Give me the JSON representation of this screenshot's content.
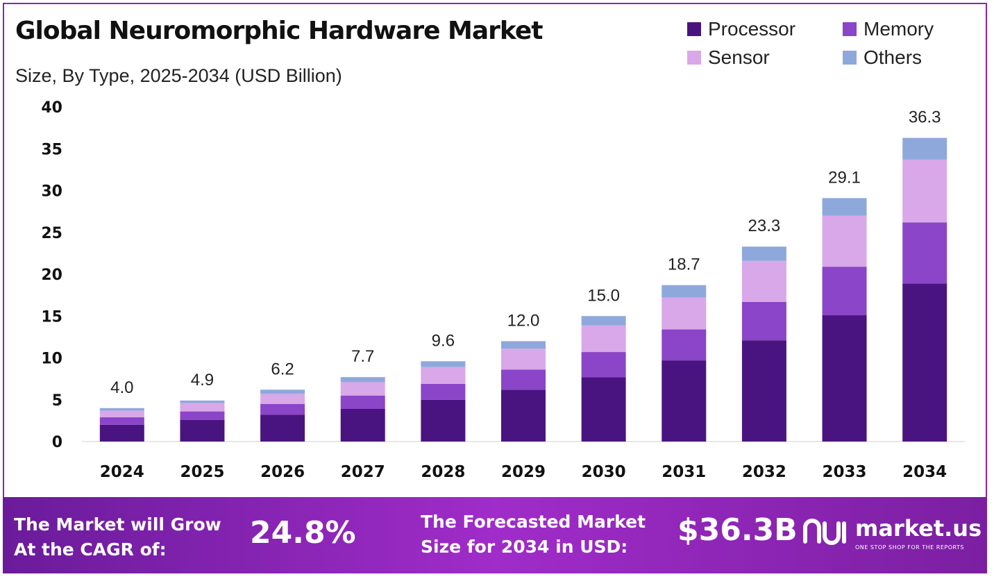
{
  "header": {
    "title": "Global Neuromorphic Hardware Market",
    "subtitle": "Size, By Type, 2025-2034 (USD Billion)"
  },
  "legend": [
    {
      "label": "Processor",
      "color": "#4a1480"
    },
    {
      "label": "Memory",
      "color": "#8b45c8"
    },
    {
      "label": "Sensor",
      "color": "#d9a8e8"
    },
    {
      "label": "Others",
      "color": "#8fa8dc"
    }
  ],
  "chart_data": {
    "type": "bar",
    "stacked": true,
    "categories": [
      "2024",
      "2025",
      "2026",
      "2027",
      "2028",
      "2029",
      "2030",
      "2031",
      "2032",
      "2033",
      "2034"
    ],
    "series": [
      {
        "name": "Processor",
        "color": "#4a1480",
        "values": [
          2.0,
          2.6,
          3.2,
          3.9,
          5.0,
          6.2,
          7.7,
          9.7,
          12.1,
          15.1,
          18.9
        ]
      },
      {
        "name": "Memory",
        "color": "#8b45c8",
        "values": [
          0.9,
          1.0,
          1.3,
          1.6,
          1.9,
          2.4,
          3.0,
          3.7,
          4.6,
          5.8,
          7.3
        ]
      },
      {
        "name": "Sensor",
        "color": "#d9a8e8",
        "values": [
          0.8,
          1.0,
          1.2,
          1.6,
          2.0,
          2.5,
          3.2,
          3.8,
          4.9,
          6.1,
          7.5
        ]
      },
      {
        "name": "Others",
        "color": "#8fa8dc",
        "values": [
          0.3,
          0.3,
          0.5,
          0.6,
          0.7,
          0.9,
          1.1,
          1.5,
          1.7,
          2.1,
          2.6
        ]
      }
    ],
    "totals": [
      "4.0",
      "4.9",
      "6.2",
      "7.7",
      "9.6",
      "12.0",
      "15.0",
      "18.7",
      "23.3",
      "29.1",
      "36.3"
    ],
    "total_values": [
      4.0,
      4.9,
      6.2,
      7.7,
      9.6,
      12.0,
      15.0,
      18.7,
      23.3,
      29.1,
      36.3
    ],
    "yticks": [
      0,
      5,
      10,
      15,
      20,
      25,
      30,
      35,
      40
    ],
    "ylim": [
      0,
      40
    ],
    "grid": false,
    "legend_position": "top-right"
  },
  "footer": {
    "cagr_label_line1": "The Market will Grow",
    "cagr_label_line2": "At the CAGR of:",
    "cagr_value": "24.8%",
    "forecast_label_line1": "The Forecasted Market",
    "forecast_label_line2": "Size for 2034 in USD:",
    "forecast_value": "$36.3B",
    "brand_name": "market.us",
    "brand_tagline": "ONE STOP SHOP FOR THE REPORTS",
    "brand_icon": "market-us-logo-icon"
  }
}
